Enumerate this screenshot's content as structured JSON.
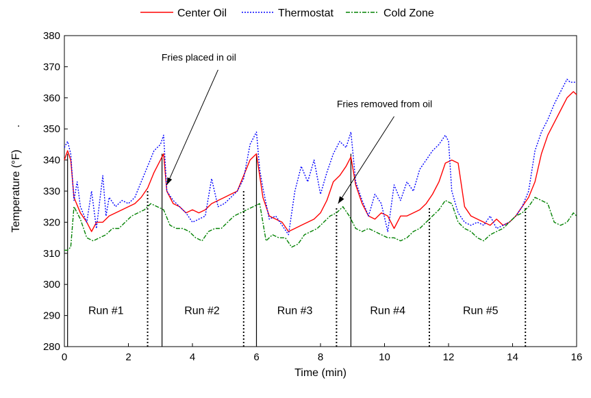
{
  "chart_data": {
    "type": "line",
    "xlabel": "Time (min)",
    "ylabel": "Temperature (°F)",
    "ylabel_suffix": ".",
    "xlim": [
      0,
      16
    ],
    "ylim": [
      280,
      380
    ],
    "xticks": [
      "0",
      "2",
      "4",
      "6",
      "8",
      "10",
      "12",
      "14",
      "16"
    ],
    "yticks": [
      "280",
      "290",
      "300",
      "310",
      "320",
      "330",
      "340",
      "350",
      "360",
      "370",
      "380"
    ],
    "grid": false,
    "legend_position": "top",
    "series": [
      {
        "name": "Center Oil",
        "color": "#ff0000",
        "style": "solid",
        "x": [
          0,
          0.1,
          0.2,
          0.3,
          0.5,
          0.7,
          0.85,
          1.0,
          1.2,
          1.4,
          1.6,
          1.8,
          2.0,
          2.2,
          2.4,
          2.6,
          2.8,
          3.0,
          3.1,
          3.2,
          3.4,
          3.6,
          3.8,
          4.0,
          4.2,
          4.4,
          4.6,
          4.8,
          5.0,
          5.2,
          5.4,
          5.6,
          5.8,
          6.0,
          6.1,
          6.2,
          6.4,
          6.6,
          6.8,
          7.0,
          7.2,
          7.4,
          7.6,
          7.8,
          8.0,
          8.2,
          8.4,
          8.6,
          8.8,
          8.95,
          9.1,
          9.3,
          9.5,
          9.7,
          9.9,
          10.1,
          10.3,
          10.5,
          10.7,
          10.9,
          11.1,
          11.3,
          11.5,
          11.7,
          11.9,
          12.1,
          12.3,
          12.5,
          12.7,
          12.9,
          13.1,
          13.3,
          13.5,
          13.7,
          13.9,
          14.1,
          14.3,
          14.5,
          14.7,
          14.9,
          15.1,
          15.3,
          15.5,
          15.7,
          15.9,
          16.0
        ],
        "values": [
          340,
          343,
          340,
          328,
          323,
          320,
          317,
          320,
          320,
          322,
          323,
          324,
          325,
          326,
          328,
          331,
          336,
          340,
          342,
          330,
          326,
          325,
          323,
          324,
          323,
          324,
          326,
          327,
          328,
          329,
          330,
          335,
          340,
          342,
          335,
          328,
          322,
          321,
          320,
          317,
          318,
          319,
          320,
          321,
          323,
          327,
          333,
          335,
          338,
          341,
          332,
          326,
          322,
          321,
          323,
          322,
          318,
          322,
          322,
          323,
          324,
          326,
          329,
          333,
          339,
          340,
          339,
          325,
          322,
          321,
          320,
          319,
          321,
          319,
          320,
          322,
          325,
          328,
          333,
          342,
          348,
          352,
          356,
          360,
          362,
          361
        ]
      },
      {
        "name": "Thermostat",
        "color": "#0000ff",
        "style": "dotted",
        "x": [
          0,
          0.1,
          0.2,
          0.3,
          0.4,
          0.5,
          0.7,
          0.85,
          1.0,
          1.2,
          1.3,
          1.4,
          1.6,
          1.8,
          2.0,
          2.2,
          2.4,
          2.6,
          2.8,
          3.0,
          3.1,
          3.2,
          3.4,
          3.6,
          3.8,
          4.0,
          4.2,
          4.4,
          4.6,
          4.8,
          5.0,
          5.2,
          5.4,
          5.6,
          5.8,
          6.0,
          6.1,
          6.2,
          6.4,
          6.6,
          6.8,
          7.0,
          7.2,
          7.4,
          7.6,
          7.8,
          8.0,
          8.2,
          8.4,
          8.6,
          8.8,
          8.95,
          9.1,
          9.3,
          9.5,
          9.7,
          9.9,
          10.1,
          10.3,
          10.5,
          10.7,
          10.9,
          11.1,
          11.3,
          11.5,
          11.7,
          11.9,
          12.0,
          12.1,
          12.3,
          12.5,
          12.7,
          12.9,
          13.1,
          13.3,
          13.5,
          13.7,
          13.9,
          14.1,
          14.3,
          14.5,
          14.7,
          14.9,
          15.1,
          15.3,
          15.5,
          15.7,
          15.8,
          16.0
        ],
        "values": [
          344,
          346,
          342,
          327,
          333,
          325,
          320,
          330,
          318,
          335,
          322,
          328,
          325,
          327,
          326,
          328,
          333,
          338,
          343,
          345,
          348,
          330,
          327,
          325,
          323,
          320,
          321,
          322,
          334,
          325,
          326,
          328,
          330,
          334,
          345,
          349,
          337,
          331,
          321,
          322,
          319,
          316,
          330,
          338,
          333,
          340,
          329,
          336,
          342,
          346,
          344,
          349,
          333,
          327,
          322,
          329,
          326,
          317,
          332,
          327,
          333,
          330,
          337,
          340,
          343,
          345,
          348,
          346,
          330,
          323,
          320,
          319,
          320,
          319,
          322,
          318,
          319,
          320,
          322,
          325,
          330,
          343,
          349,
          353,
          358,
          362,
          366,
          365,
          365
        ]
      },
      {
        "name": "Cold Zone",
        "color": "#008000",
        "style": "dashdot",
        "x": [
          0,
          0.1,
          0.2,
          0.3,
          0.5,
          0.7,
          0.9,
          1.1,
          1.3,
          1.5,
          1.7,
          1.9,
          2.1,
          2.3,
          2.5,
          2.7,
          2.9,
          3.1,
          3.3,
          3.5,
          3.7,
          3.9,
          4.1,
          4.3,
          4.5,
          4.7,
          4.9,
          5.1,
          5.3,
          5.5,
          5.7,
          5.9,
          6.1,
          6.3,
          6.5,
          6.7,
          6.9,
          7.1,
          7.3,
          7.5,
          7.7,
          7.9,
          8.1,
          8.3,
          8.5,
          8.7,
          8.9,
          9.1,
          9.3,
          9.5,
          9.7,
          9.9,
          10.1,
          10.3,
          10.5,
          10.7,
          10.9,
          11.1,
          11.3,
          11.5,
          11.7,
          11.9,
          12.1,
          12.3,
          12.5,
          12.7,
          12.9,
          13.1,
          13.3,
          13.5,
          13.7,
          13.9,
          14.1,
          14.3,
          14.5,
          14.7,
          14.9,
          15.1,
          15.3,
          15.5,
          15.7,
          15.9,
          16.0
        ],
        "values": [
          311,
          311,
          312,
          325,
          321,
          315,
          314,
          315,
          316,
          318,
          318,
          320,
          322,
          323,
          324,
          326,
          325,
          324,
          319,
          318,
          318,
          317,
          315,
          314,
          317,
          318,
          318,
          320,
          322,
          323,
          324,
          325,
          326,
          314,
          316,
          315,
          315,
          312,
          313,
          316,
          317,
          318,
          320,
          322,
          323,
          325,
          322,
          318,
          317,
          318,
          317,
          316,
          315,
          315,
          314,
          315,
          317,
          318,
          320,
          322,
          324,
          327,
          326,
          320,
          318,
          317,
          315,
          314,
          316,
          317,
          318,
          320,
          322,
          323,
          325,
          328,
          327,
          326,
          320,
          319,
          320,
          323,
          322
        ]
      }
    ],
    "vertical_lines": {
      "solid": [
        0.1,
        3.05,
        6.0,
        8.95
      ],
      "dotted": [
        2.6,
        5.6,
        8.5,
        11.4,
        14.4
      ]
    },
    "dotted_line_tops": [
      330,
      330,
      325,
      325,
      325
    ],
    "run_labels": [
      {
        "text": "Run #1",
        "x": 1.3,
        "y": 290
      },
      {
        "text": "Run #2",
        "x": 4.3,
        "y": 290
      },
      {
        "text": "Run #3",
        "x": 7.2,
        "y": 290
      },
      {
        "text": "Run #4",
        "x": 10.1,
        "y": 290
      },
      {
        "text": "Run #5",
        "x": 13.0,
        "y": 290
      }
    ],
    "annotations": [
      {
        "text": "Fries placed in oil",
        "text_x": 4.2,
        "text_y": 372,
        "arrow_from_x": 4.8,
        "arrow_from_y": 369,
        "arrow_to_x": 3.2,
        "arrow_to_y": 332
      },
      {
        "text": "Fries removed from oil",
        "text_x": 10.0,
        "text_y": 357,
        "arrow_from_x": 10.3,
        "arrow_from_y": 354,
        "arrow_to_x": 8.55,
        "arrow_to_y": 326
      }
    ]
  }
}
